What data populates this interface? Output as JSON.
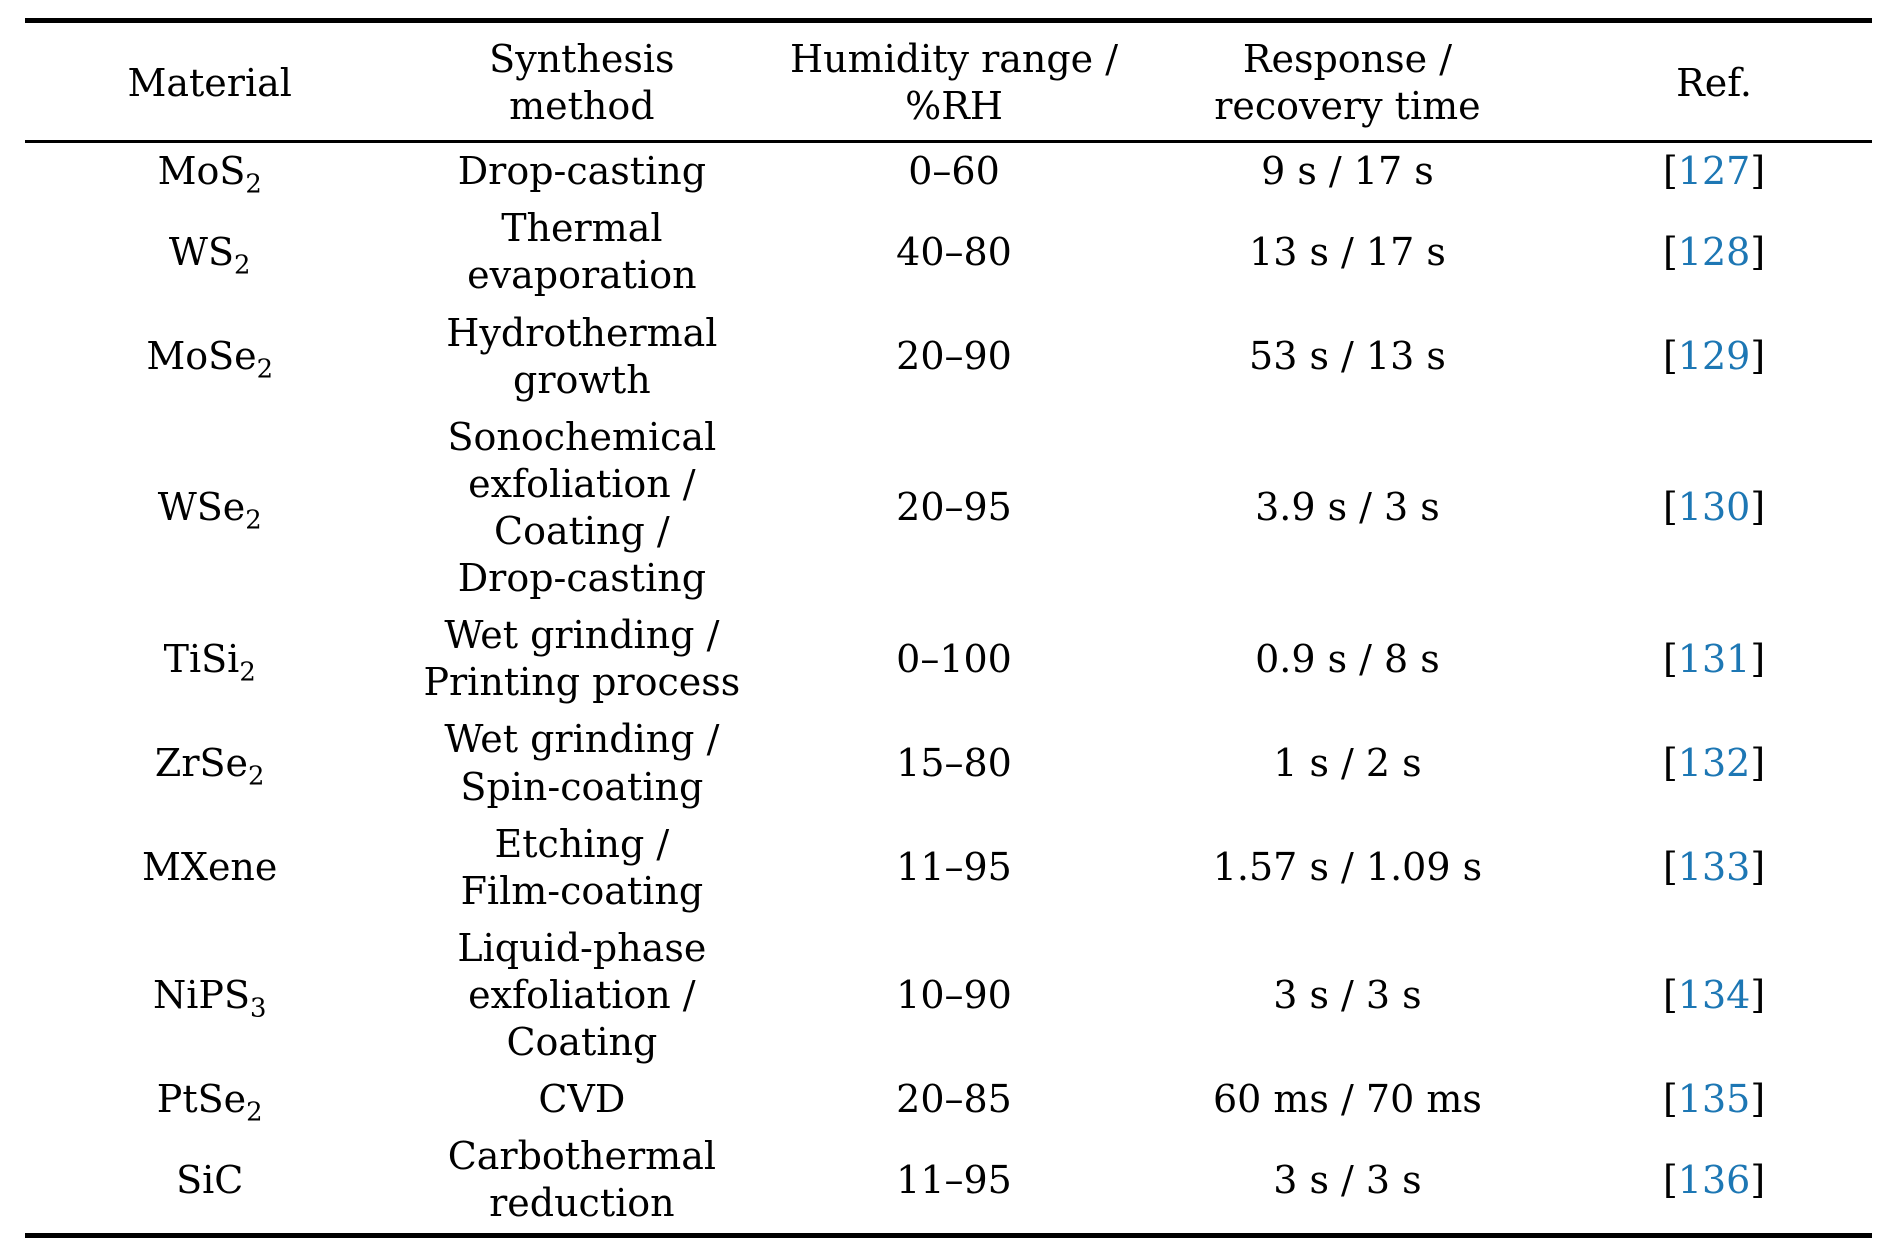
{
  "colors": {
    "text": "#000000",
    "rule": "#000000",
    "citation_blue": "#1d77b4",
    "background": "#ffffff"
  },
  "table": {
    "columns": [
      {
        "id": "material",
        "label_lines": [
          "Material"
        ]
      },
      {
        "id": "synthesis-method",
        "label_lines": [
          "Synthesis",
          "method"
        ]
      },
      {
        "id": "humidity-range",
        "label_lines": [
          "Humidity range /",
          "%RH"
        ]
      },
      {
        "id": "response-recovery",
        "label_lines": [
          "Response /",
          "recovery time"
        ]
      },
      {
        "id": "ref",
        "label_lines": [
          "Ref."
        ]
      }
    ],
    "rows": [
      {
        "material_base": "MoS",
        "material_sub": "2",
        "method_lines": [
          "Drop-casting"
        ],
        "humidity_range": "0–60",
        "response_recovery": "9 s / 17 s",
        "ref": "127"
      },
      {
        "material_base": "WS",
        "material_sub": "2",
        "method_lines": [
          "Thermal",
          "evaporation"
        ],
        "humidity_range": "40–80",
        "response_recovery": "13 s / 17 s",
        "ref": "128"
      },
      {
        "material_base": "MoSe",
        "material_sub": "2",
        "method_lines": [
          "Hydrothermal",
          "growth"
        ],
        "humidity_range": "20–90",
        "response_recovery": "53 s / 13 s",
        "ref": "129"
      },
      {
        "material_base": "WSe",
        "material_sub": "2",
        "method_lines": [
          "Sonochemical",
          "exfoliation /",
          "Coating /",
          "Drop-casting"
        ],
        "humidity_range": "20–95",
        "response_recovery": "3.9 s / 3 s",
        "ref": "130"
      },
      {
        "material_base": "TiSi",
        "material_sub": "2",
        "method_lines": [
          "Wet grinding /",
          "Printing process"
        ],
        "humidity_range": "0–100",
        "response_recovery": "0.9 s / 8 s",
        "ref": "131"
      },
      {
        "material_base": "ZrSe",
        "material_sub": "2",
        "method_lines": [
          "Wet grinding /",
          "Spin-coating"
        ],
        "humidity_range": "15–80",
        "response_recovery": "1 s / 2 s",
        "ref": "132"
      },
      {
        "material_base": "MXene",
        "material_sub": "",
        "method_lines": [
          "Etching /",
          "Film-coating"
        ],
        "humidity_range": "11–95",
        "response_recovery": "1.57 s / 1.09 s",
        "ref": "133"
      },
      {
        "material_base": "NiPS",
        "material_sub": "3",
        "method_lines": [
          "Liquid-phase",
          "exfoliation /",
          "Coating"
        ],
        "humidity_range": "10–90",
        "response_recovery": "3 s / 3 s",
        "ref": "134"
      },
      {
        "material_base": "PtSe",
        "material_sub": "2",
        "method_lines": [
          "CVD"
        ],
        "humidity_range": "20–85",
        "response_recovery": "60 ms / 70 ms",
        "ref": "135"
      },
      {
        "material_base": "SiC",
        "material_sub": "",
        "method_lines": [
          "Carbothermal",
          "reduction"
        ],
        "humidity_range": "11–95",
        "response_recovery": "3 s / 3 s",
        "ref": "136"
      }
    ]
  }
}
